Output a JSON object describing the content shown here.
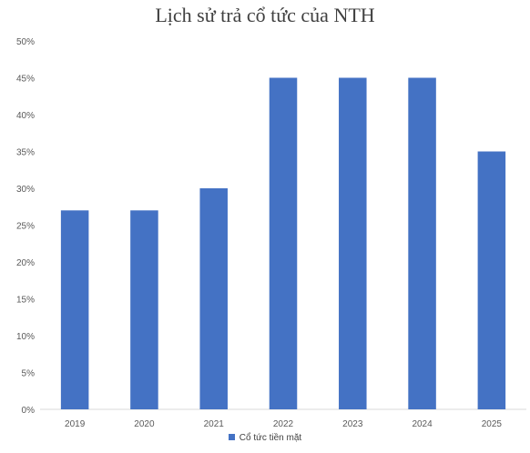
{
  "chart_data": {
    "type": "bar",
    "title": "Lịch sử trả cổ tức của NTH",
    "categories": [
      "2019",
      "2020",
      "2021",
      "2022",
      "2023",
      "2024",
      "2025"
    ],
    "series": [
      {
        "name": "Cổ tức tiền mặt",
        "values": [
          27,
          27,
          30,
          45,
          45,
          45,
          35
        ],
        "color": "#4472C4"
      }
    ],
    "yticks": [
      "0%",
      "5%",
      "10%",
      "15%",
      "20%",
      "25%",
      "30%",
      "35%",
      "40%",
      "45%",
      "50%"
    ],
    "ylim": [
      0,
      50
    ],
    "xlabel": "",
    "ylabel": "",
    "grid": false,
    "legend": "bottom"
  }
}
